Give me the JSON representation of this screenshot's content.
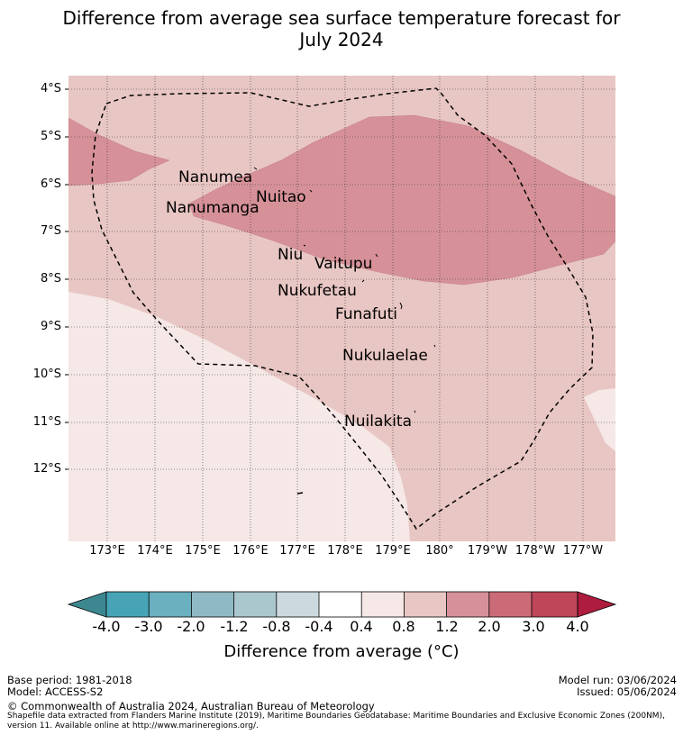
{
  "title": {
    "line1": "Difference from average sea surface temperature forecast for",
    "line2": "July 2024"
  },
  "map": {
    "lat_labels": [
      "4°S",
      "5°S",
      "6°S",
      "7°S",
      "8°S",
      "9°S",
      "10°S",
      "11°S",
      "12°S"
    ],
    "lon_labels": [
      "173°E",
      "174°E",
      "175°E",
      "176°E",
      "177°E",
      "178°E",
      "179°E",
      "180°",
      "179°W",
      "178°W",
      "177°W"
    ],
    "places": [
      "Nanumea",
      "Nuitao",
      "Nanumanga",
      "Niu",
      "Vaitupu",
      "Nukufetau",
      "Funafuti",
      "Nukulaelae",
      "Nuilakita"
    ],
    "boundary": "Tuvalu exclusive economic zone (dashed line)",
    "colors": {
      "band_0_4_0_8": "#f5e8e7",
      "band_0_8_1_2": "#e8c6c3",
      "band_1_2_2_0": "#d69198"
    }
  },
  "colorbar": {
    "ticks": [
      "-4.0",
      "-3.0",
      "-2.0",
      "-1.2",
      "-0.8",
      "-0.4",
      "0.4",
      "0.8",
      "1.2",
      "2.0",
      "3.0",
      "4.0"
    ],
    "colors": [
      "#3d8791",
      "#47a4b6",
      "#6ab0bf",
      "#8fbac5",
      "#abc7ce",
      "#ccdadf",
      "#ffffff",
      "#f5e8e7",
      "#e8c6c3",
      "#d69198",
      "#cc6b78",
      "#bf4558",
      "#ae1c3e"
    ],
    "label": "Difference from average (°C)"
  },
  "footer": {
    "base_period": "Base period: 1981-2018",
    "model": "Model: ACCESS-S2",
    "model_run": "Model run: 03/06/2024",
    "issued": "Issued: 05/06/2024",
    "copyright": "© Commonwealth of Australia 2024, Australian Bureau of Meteorology",
    "source_line1": "Shapefile data extracted from Flanders Marine Institute (2019), Maritime Boundaries Geodatabase: Maritime Boundaries and Exclusive Economic Zones (200NM),",
    "source_line2": "version 11. Available online at http://www.marineregions.org/."
  }
}
